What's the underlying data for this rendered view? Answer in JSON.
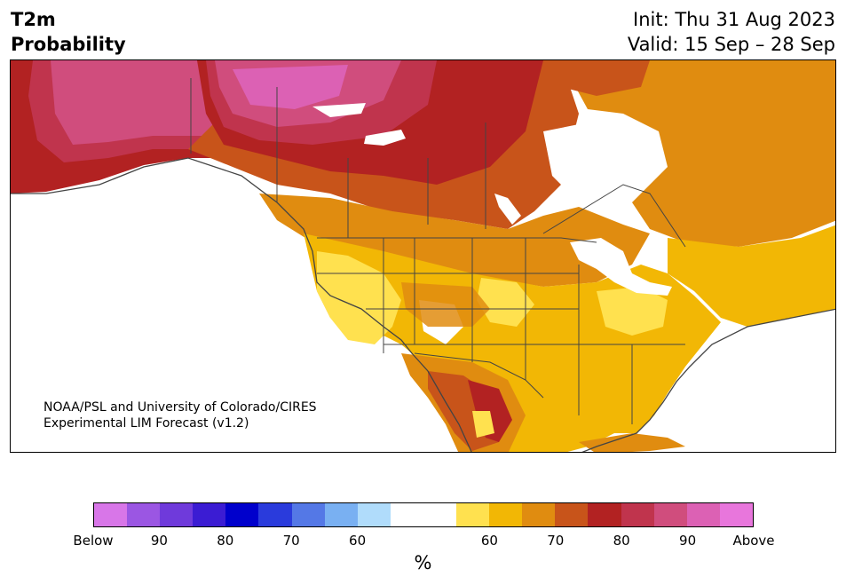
{
  "header": {
    "title_line1": "T2m",
    "title_line2": "Probability",
    "init": "Init: Thu 31 Aug 2023",
    "valid": "Valid: 15 Sep – 28 Sep"
  },
  "credit": {
    "line1": "NOAA/PSL and University of Colorado/CIRES",
    "line2": "Experimental LIM Forecast (v1.2)"
  },
  "colorbar": {
    "colors": [
      "#d876e8",
      "#9b56e3",
      "#6f3adb",
      "#3b1cd3",
      "#0000cc",
      "#2a3bdc",
      "#5478e6",
      "#79b0f2",
      "#b0dcfb",
      "#ffffff",
      "#ffffff",
      "#ffe14f",
      "#f2b705",
      "#e08c10",
      "#c8541a",
      "#b22222",
      "#c0344d",
      "#d04d7d",
      "#dc61b4",
      "#e876dc"
    ],
    "tick_labels": [
      "Below",
      "90",
      "80",
      "70",
      "60",
      "60",
      "70",
      "80",
      "90",
      "Above"
    ],
    "unit": "%"
  },
  "map": {
    "land_fill": "#ffffff",
    "ocean_fill": "#ffffff",
    "border_color": "#444444",
    "region_colors": {
      "light_yellow": "#ffe14f",
      "yellow": "#f2b705",
      "orange": "#e08c10",
      "dark_orange": "#c8541a",
      "red": "#b22222",
      "crimson": "#c0344d",
      "rose": "#d04d7d",
      "pink": "#dc61b4"
    }
  }
}
